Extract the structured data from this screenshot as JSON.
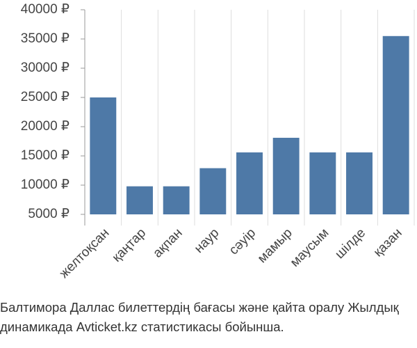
{
  "chart_data": {
    "type": "bar",
    "title": "Балтимора Даллас билеттердің бағасы және қайта оралу Жылдық динамикада Avticket.kz статистикасы бойынша.",
    "categories": [
      "желтоқсан",
      "қаңтар",
      "ақпан",
      "наур",
      "сәуір",
      "мамыр",
      "маусым",
      "шілде",
      "қазан"
    ],
    "values": [
      25000,
      9800,
      9800,
      12900,
      15600,
      18100,
      15600,
      15600,
      35500
    ],
    "color": "#4e79a7",
    "ylim": [
      5000,
      40000
    ],
    "yticks": [
      {
        "value": 5000,
        "label": "5000 ₽"
      },
      {
        "value": 10000,
        "label": "10000 ₽"
      },
      {
        "value": 15000,
        "label": "15000 ₽"
      },
      {
        "value": 20000,
        "label": "20000 ₽"
      },
      {
        "value": 25000,
        "label": "25000 ₽"
      },
      {
        "value": 30000,
        "label": "30000 ₽"
      },
      {
        "value": 35000,
        "label": "35000 ₽"
      },
      {
        "value": 40000,
        "label": "40000 ₽"
      }
    ],
    "grid": "x"
  }
}
